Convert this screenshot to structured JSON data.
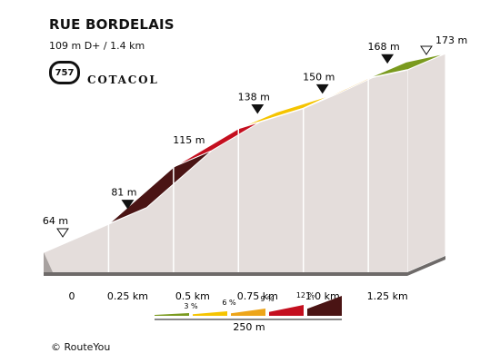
{
  "header": {
    "title": "RUE BORDELAIS",
    "subtitle": "109 m D+ / 1.4 km",
    "badge_number": "757",
    "brand": "COTACOL"
  },
  "footer": {
    "copyright": "© RouteYou"
  },
  "legend": {
    "labels": [
      "3 %",
      "6 %",
      "9 %",
      "12 %"
    ],
    "scale_label": "250 m"
  },
  "colors": {
    "grade_0_3": "#7a9a1e",
    "grade_3_6": "#f5c400",
    "grade_6_9": "#eda51a",
    "grade_9_12": "#c40f1f",
    "grade_12_plus": "#4a1414",
    "side_wall": "#e4dddb",
    "side_dark": "#a8a2a0"
  },
  "chart_data": {
    "type": "area",
    "title": "RUE BORDELAIS",
    "xlabel": "",
    "ylabel": "",
    "xlim": [
      0,
      1.4
    ],
    "ylim": [
      64,
      173
    ],
    "x_tick_values": [
      0,
      0.25,
      0.5,
      0.75,
      1.0,
      1.25
    ],
    "x_tick_labels": [
      "0",
      "0.25 km",
      "0.5 km",
      "0.75 km",
      "1.0 km",
      "1.25 km"
    ],
    "points": [
      {
        "x": 0.0,
        "y": 64,
        "label": "64 m",
        "marker": "open"
      },
      {
        "x": 0.25,
        "y": 81,
        "label": "81 m",
        "marker": "filled"
      },
      {
        "x": 0.5,
        "y": 115,
        "label": "115 m",
        "marker": "none"
      },
      {
        "x": 0.75,
        "y": 138,
        "label": "138 m",
        "marker": "filled"
      },
      {
        "x": 1.0,
        "y": 150,
        "label": "150 m",
        "marker": "filled"
      },
      {
        "x": 1.25,
        "y": 168,
        "label": "168 m",
        "marker": "filled"
      },
      {
        "x": 1.4,
        "y": 173,
        "label": "173 m",
        "marker": "open"
      }
    ],
    "segment_colors": [
      "#eda51a",
      "#4a1414",
      "#c40f1f",
      "#f5c400",
      "#eda51a",
      "#7a9a1e"
    ]
  }
}
